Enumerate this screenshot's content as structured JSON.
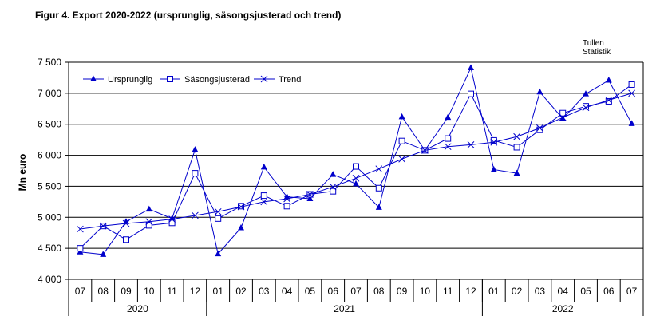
{
  "title": "Figur  4. Export 2020-2022 (ursprunglig, säsongsjusterad och trend)",
  "source": {
    "line1": "Tullen",
    "line2": "Statistik"
  },
  "colors": {
    "series": "#0000cc",
    "grid": "#000000",
    "axis": "#000000"
  },
  "chart_data": {
    "type": "line",
    "ylabel": "Mn euro",
    "ylim": [
      4000,
      7500
    ],
    "y_ticks": [
      4000,
      4500,
      5000,
      5500,
      6000,
      6500,
      7000,
      7500
    ],
    "y_tick_labels": [
      "4 000",
      "4 500",
      "5 000",
      "5 500",
      "6 000",
      "6 500",
      "7 000",
      "7 500"
    ],
    "grid": true,
    "legend_position": "top-left",
    "categories": [
      "07",
      "08",
      "09",
      "10",
      "11",
      "12",
      "01",
      "02",
      "03",
      "04",
      "05",
      "06",
      "07",
      "08",
      "09",
      "10",
      "11",
      "12",
      "01",
      "02",
      "03",
      "04",
      "05",
      "06",
      "07"
    ],
    "year_groups": [
      {
        "label": "2020",
        "start": 0,
        "end": 5
      },
      {
        "label": "2021",
        "start": 6,
        "end": 17
      },
      {
        "label": "2022",
        "start": 18,
        "end": 24
      }
    ],
    "series": [
      {
        "name": "Ursprunglig",
        "marker": "triangle",
        "values": [
          4440,
          4400,
          4930,
          5130,
          4980,
          6090,
          4410,
          4830,
          5810,
          5330,
          5300,
          5690,
          5540,
          5160,
          6620,
          6080,
          6610,
          7410,
          5770,
          5710,
          7020,
          6590,
          6990,
          7210,
          6510
        ]
      },
      {
        "name": "Säsongsjusterad",
        "marker": "square",
        "values": [
          4500,
          4860,
          4640,
          4870,
          4910,
          5710,
          4980,
          5180,
          5350,
          5180,
          5370,
          5420,
          5820,
          5470,
          6230,
          6080,
          6270,
          6990,
          6240,
          6130,
          6410,
          6680,
          6790,
          6870,
          7140
        ]
      },
      {
        "name": "Trend",
        "marker": "x",
        "values": [
          4810,
          4860,
          4900,
          4930,
          4970,
          5030,
          5090,
          5170,
          5250,
          5300,
          5370,
          5490,
          5630,
          5780,
          5940,
          6080,
          6140,
          6170,
          6210,
          6300,
          6440,
          6610,
          6770,
          6890,
          7000
        ]
      }
    ]
  }
}
